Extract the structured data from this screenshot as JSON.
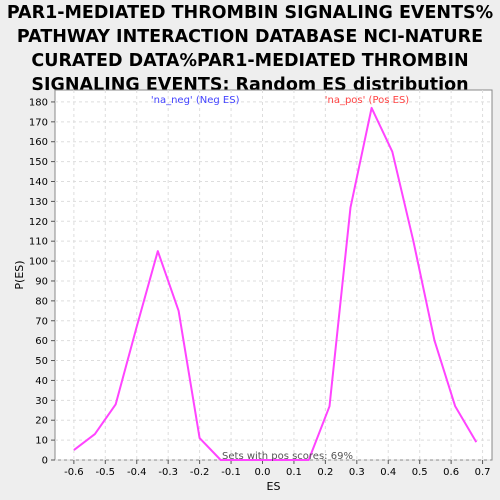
{
  "chart_data": {
    "type": "line",
    "title_lines": [
      "PAR1-MEDIATED THROMBIN SIGNALING EVENTS%",
      "PATHWAY INTERACTION DATABASE NCI-NATURE",
      "CURATED DATA%PAR1-MEDIATED THROMBIN",
      "SIGNALING EVENTS: Random ES distribution"
    ],
    "xlabel": "ES",
    "ylabel": "P(ES)",
    "xlim": [
      -0.66,
      0.73
    ],
    "ylim": [
      0,
      186
    ],
    "x_ticks": [
      -0.6,
      -0.5,
      -0.4,
      -0.3,
      -0.2,
      -0.1,
      0.0,
      0.1,
      0.2,
      0.3,
      0.4,
      0.5,
      0.6,
      0.7
    ],
    "x_tick_labels": [
      "-0.6",
      "-0.5",
      "-0.4",
      "-0.3",
      "-0.2",
      "-0.1",
      "0.0",
      "0.1",
      "0.2",
      "0.3",
      "0.4",
      "0.5",
      "0.6",
      "0.7"
    ],
    "y_ticks": [
      0,
      10,
      20,
      30,
      40,
      50,
      60,
      70,
      80,
      90,
      100,
      110,
      120,
      130,
      140,
      150,
      160,
      170,
      180
    ],
    "y_tick_labels": [
      "0",
      "10",
      "20",
      "30",
      "40",
      "50",
      "60",
      "70",
      "80",
      "90",
      "100",
      "110",
      "120",
      "130",
      "140",
      "150",
      "160",
      "170",
      "180"
    ],
    "grid": true,
    "series": [
      {
        "color": "#ff44ff",
        "x": [
          -0.6,
          -0.533,
          -0.467,
          -0.4,
          -0.333,
          -0.267,
          -0.2,
          -0.133,
          0.147,
          0.213,
          0.28,
          0.347,
          0.413,
          0.48,
          0.547,
          0.613,
          0.68
        ],
        "y": [
          5,
          13,
          28,
          67,
          105,
          75,
          11,
          0,
          0,
          27,
          127,
          177,
          155,
          110,
          60,
          27,
          9
        ]
      }
    ],
    "annotations": {
      "neg_label": "'na_neg' (Neg ES)",
      "neg_color": "#4444ff",
      "pos_label": "'na_pos' (Pos ES)",
      "pos_color": "#ff4444",
      "footer": "Sets with pos scores: 69%"
    }
  }
}
